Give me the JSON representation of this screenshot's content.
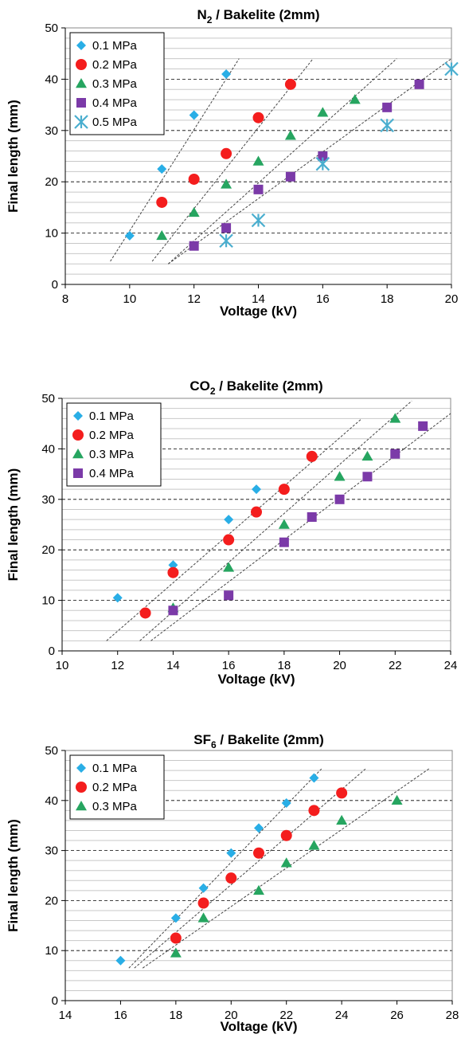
{
  "chart_data": [
    {
      "type": "scatter",
      "title": "N2 / Bakelite (2mm)",
      "title_main": "N",
      "title_sub": "2",
      "title_rest": " / Bakelite (2mm)",
      "xlabel": "Voltage (kV)",
      "ylabel": "Final length (mm)",
      "xlim": [
        8,
        20
      ],
      "ylim": [
        0,
        50
      ],
      "x_ticks": [
        8,
        10,
        12,
        14,
        16,
        18,
        20
      ],
      "y_ticks": [
        0,
        10,
        20,
        30,
        40,
        50
      ],
      "grid": "horizontal minor grid, dashed major lines",
      "legend_position": "top-left",
      "series": [
        {
          "name": "0.1 MPa",
          "marker": "diamond",
          "color": "#29aee6",
          "points": [
            [
              10,
              9.5
            ],
            [
              11,
              22.5
            ],
            [
              12,
              33
            ],
            [
              13,
              41
            ]
          ],
          "trend": [
            [
              9.4,
              4.5
            ],
            [
              13.4,
              44
            ]
          ]
        },
        {
          "name": "0.2 MPa",
          "marker": "circle",
          "color": "#f41d1d",
          "points": [
            [
              11,
              16
            ],
            [
              12,
              20.5
            ],
            [
              13,
              25.5
            ],
            [
              14,
              32.5
            ],
            [
              15,
              39
            ]
          ],
          "trend": [
            [
              10.7,
              4.5
            ],
            [
              15.7,
              44
            ]
          ]
        },
        {
          "name": "0.3 MPa",
          "marker": "triangle",
          "color": "#26a560",
          "points": [
            [
              11,
              9.5
            ],
            [
              12,
              14
            ],
            [
              13,
              19.5
            ],
            [
              14,
              24
            ],
            [
              15,
              29
            ],
            [
              16,
              33.5
            ],
            [
              17,
              36
            ]
          ],
          "trend": [
            [
              11.2,
              4
            ],
            [
              18.3,
              44
            ]
          ]
        },
        {
          "name": "0.4 MPa",
          "marker": "square",
          "color": "#7b3aa8",
          "points": [
            [
              12,
              7.5
            ],
            [
              13,
              11
            ],
            [
              14,
              18.5
            ],
            [
              15,
              21
            ],
            [
              16,
              25
            ],
            [
              18,
              34.5
            ],
            [
              19,
              39
            ]
          ],
          "trend": [
            [
              11.2,
              4
            ],
            [
              20,
              44
            ]
          ]
        },
        {
          "name": "0.5 MPa",
          "marker": "asterisk",
          "color": "#4aaecf",
          "points": [
            [
              13,
              8.5
            ],
            [
              14,
              12.5
            ],
            [
              16,
              23.5
            ],
            [
              18,
              31
            ],
            [
              20,
              42
            ]
          ],
          "trend": null
        }
      ]
    },
    {
      "type": "scatter",
      "title": "CO2 / Bakelite (2mm)",
      "title_main": "CO",
      "title_sub": "2",
      "title_rest": " / Bakelite (2mm)",
      "xlabel": "Voltage (kV)",
      "ylabel": "Final length (mm)",
      "xlim": [
        10,
        24
      ],
      "ylim": [
        0,
        50
      ],
      "x_ticks": [
        10,
        12,
        14,
        16,
        18,
        20,
        22,
        24
      ],
      "y_ticks": [
        0,
        10,
        20,
        30,
        40,
        50
      ],
      "grid": "horizontal minor grid, dashed major lines",
      "legend_position": "top-left",
      "series": [
        {
          "name": "0.1 MPa",
          "marker": "diamond",
          "color": "#29aee6",
          "points": [
            [
              12,
              10.5
            ],
            [
              14,
              17
            ],
            [
              16,
              26
            ],
            [
              17,
              32
            ]
          ],
          "trend": null
        },
        {
          "name": "0.2 MPa",
          "marker": "circle",
          "color": "#f41d1d",
          "points": [
            [
              13,
              7.5
            ],
            [
              14,
              15.5
            ],
            [
              16,
              22
            ],
            [
              17,
              27.5
            ],
            [
              18,
              32
            ],
            [
              19,
              38.5
            ]
          ],
          "trend": [
            [
              11.6,
              2
            ],
            [
              20.8,
              46
            ]
          ]
        },
        {
          "name": "0.3 MPa",
          "marker": "triangle",
          "color": "#26a560",
          "points": [
            [
              14,
              8.5
            ],
            [
              16,
              16.5
            ],
            [
              18,
              25
            ],
            [
              20,
              34.5
            ],
            [
              21,
              38.5
            ],
            [
              22,
              46
            ]
          ],
          "trend": [
            [
              12.8,
              2
            ],
            [
              22.6,
              49.5
            ]
          ]
        },
        {
          "name": "0.4 MPa",
          "marker": "square",
          "color": "#7b3aa8",
          "points": [
            [
              14,
              8
            ],
            [
              16,
              11
            ],
            [
              18,
              21.5
            ],
            [
              19,
              26.5
            ],
            [
              20,
              30
            ],
            [
              21,
              34.5
            ],
            [
              22,
              39
            ],
            [
              23,
              44.5
            ]
          ],
          "trend": [
            [
              13.2,
              2
            ],
            [
              24,
              47
            ]
          ]
        }
      ]
    },
    {
      "type": "scatter",
      "title": "SF6 / Bakelite (2mm)",
      "title_main": "SF",
      "title_sub": "6",
      "title_rest": " / Bakelite (2mm)",
      "xlabel": "Voltage (kV)",
      "ylabel": "Final length (mm)",
      "xlim": [
        14,
        28
      ],
      "ylim": [
        0,
        50
      ],
      "x_ticks": [
        14,
        16,
        18,
        20,
        22,
        24,
        26,
        28
      ],
      "y_ticks": [
        0,
        10,
        20,
        30,
        40,
        50
      ],
      "grid": "horizontal minor grid, dashed major lines",
      "legend_position": "top-left",
      "series": [
        {
          "name": "0.1 MPa",
          "marker": "diamond",
          "color": "#29aee6",
          "points": [
            [
              16,
              8
            ],
            [
              18,
              16.5
            ],
            [
              19,
              22.5
            ],
            [
              20,
              29.5
            ],
            [
              21,
              34.5
            ],
            [
              22,
              39.5
            ],
            [
              23,
              44.5
            ]
          ],
          "trend": [
            [
              16.3,
              6.5
            ],
            [
              23.3,
              46.5
            ]
          ]
        },
        {
          "name": "0.2 MPa",
          "marker": "circle",
          "color": "#f41d1d",
          "points": [
            [
              18,
              12.5
            ],
            [
              19,
              19.5
            ],
            [
              20,
              24.5
            ],
            [
              21,
              29.5
            ],
            [
              22,
              33
            ],
            [
              23,
              38
            ],
            [
              24,
              41.5
            ]
          ],
          "trend": [
            [
              16.5,
              6.5
            ],
            [
              24.9,
              46.5
            ]
          ]
        },
        {
          "name": "0.3 MPa",
          "marker": "triangle",
          "color": "#26a560",
          "points": [
            [
              18,
              9.5
            ],
            [
              19,
              16.5
            ],
            [
              21,
              22
            ],
            [
              22,
              27.5
            ],
            [
              23,
              31
            ],
            [
              24,
              36
            ],
            [
              26,
              40
            ]
          ],
          "trend": [
            [
              16.8,
              6.5
            ],
            [
              27.2,
              46.5
            ]
          ]
        }
      ]
    }
  ]
}
